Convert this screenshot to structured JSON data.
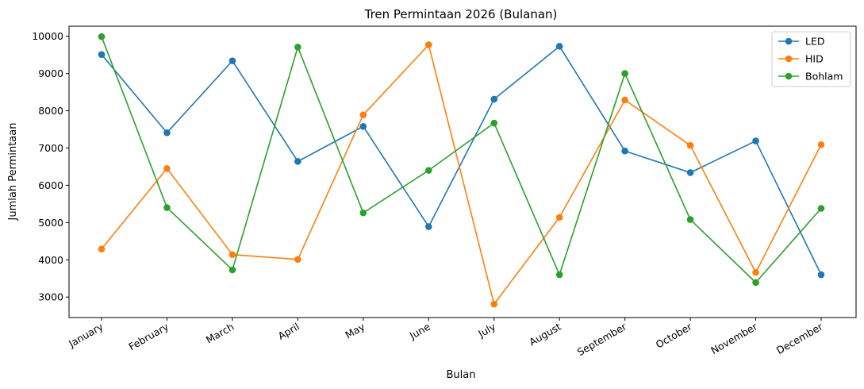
{
  "chart_data": {
    "type": "line",
    "title": "Tren Permintaan 2026 (Bulanan)",
    "xlabel": "Bulan",
    "ylabel": "Jumlah Permintaan",
    "categories": [
      "January",
      "February",
      "March",
      "April",
      "May",
      "June",
      "July",
      "August",
      "September",
      "October",
      "November",
      "December"
    ],
    "yticks": [
      3000,
      4000,
      5000,
      6000,
      7000,
      8000,
      9000,
      10000
    ],
    "ylim": [
      2450,
      10270
    ],
    "grid": false,
    "legend_position": "top-right",
    "series": [
      {
        "name": "LED",
        "color": "#1f77b4",
        "values": [
          9510,
          7410,
          9340,
          6640,
          7580,
          4890,
          8310,
          9730,
          6920,
          6340,
          7190,
          3600
        ]
      },
      {
        "name": "HID",
        "color": "#ff7f0e",
        "values": [
          4290,
          6450,
          4140,
          4010,
          7890,
          9770,
          2810,
          5140,
          8290,
          7070,
          3660,
          7090
        ]
      },
      {
        "name": "Bohlam",
        "color": "#2ca02c",
        "values": [
          9990,
          5400,
          3730,
          9710,
          5260,
          6400,
          7670,
          3600,
          9000,
          5080,
          3390,
          5380
        ]
      }
    ]
  }
}
